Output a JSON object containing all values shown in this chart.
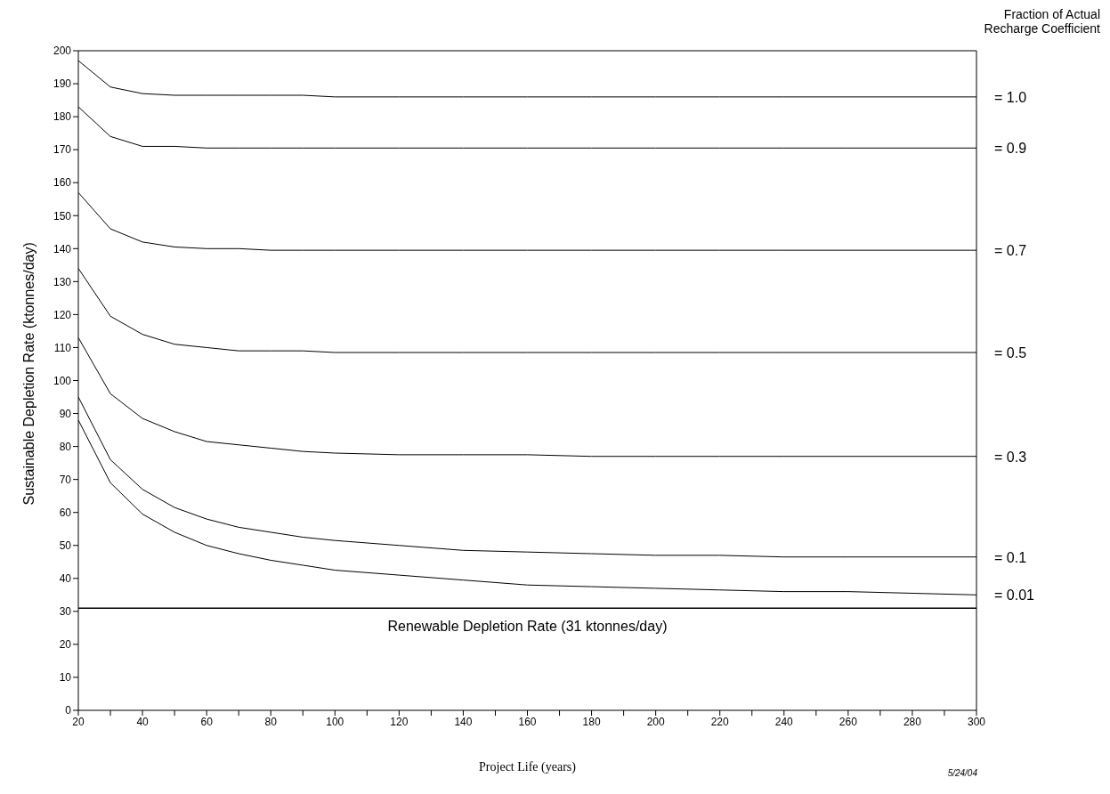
{
  "chart_data": {
    "type": "line",
    "xlabel": "Project Life (years)",
    "ylabel": "Sustainable Depletion Rate (ktonnes/day)",
    "legend_title": "Fraction of Actual Recharge Coefficient",
    "annotations": [
      "5/24/04"
    ],
    "x": [
      20,
      30,
      40,
      50,
      60,
      70,
      80,
      90,
      100,
      120,
      140,
      160,
      180,
      200,
      220,
      240,
      260,
      280,
      300
    ],
    "series": [
      {
        "name": "= 1.0",
        "color": "#000000",
        "values": [
          197,
          189,
          187,
          186.5,
          186.5,
          186.5,
          186.5,
          186.5,
          186,
          186,
          186,
          186,
          186,
          186,
          186,
          186,
          186,
          186,
          186
        ]
      },
      {
        "name": "= 0.9",
        "color": "#000000",
        "values": [
          183,
          174,
          171,
          171,
          170.5,
          170.5,
          170.5,
          170.5,
          170.5,
          170.5,
          170.5,
          170.5,
          170.5,
          170.5,
          170.5,
          170.5,
          170.5,
          170.5,
          170.5
        ]
      },
      {
        "name": "= 0.7",
        "color": "#000000",
        "values": [
          157,
          146,
          142,
          140.5,
          140,
          140,
          139.5,
          139.5,
          139.5,
          139.5,
          139.5,
          139.5,
          139.5,
          139.5,
          139.5,
          139.5,
          139.5,
          139.5,
          139.5
        ]
      },
      {
        "name": "= 0.5",
        "color": "#000000",
        "values": [
          134,
          119.5,
          114,
          111,
          110,
          109,
          109,
          109,
          108.5,
          108.5,
          108.5,
          108.5,
          108.5,
          108.5,
          108.5,
          108.5,
          108.5,
          108.5,
          108.5
        ]
      },
      {
        "name": "= 0.3",
        "color": "#000000",
        "values": [
          113,
          96,
          88.5,
          84.5,
          81.5,
          80.5,
          79.5,
          78.5,
          78,
          77.5,
          77.5,
          77.5,
          77,
          77,
          77,
          77,
          77,
          77,
          77
        ]
      },
      {
        "name": "= 0.1",
        "color": "#000000",
        "values": [
          95,
          76,
          67,
          61.5,
          58,
          55.5,
          54,
          52.5,
          51.5,
          50,
          48.5,
          48,
          47.5,
          47,
          47,
          46.5,
          46.5,
          46.5,
          46.5
        ]
      },
      {
        "name": "= 0.01",
        "color": "#000000",
        "values": [
          88,
          69,
          59.5,
          54,
          50,
          47.5,
          45.5,
          44,
          42.5,
          41,
          39.5,
          38,
          37.5,
          37,
          36.5,
          36,
          36,
          35.5,
          35
        ]
      }
    ],
    "ref_lines": [
      {
        "axis": "y",
        "value": 31,
        "label": "Renewable Depletion Rate (31 ktonnes/day)",
        "color": "#000000"
      }
    ],
    "xlim": [
      20,
      300
    ],
    "xticks": [
      20,
      {
        "value": 30,
        "label": null
      },
      40,
      {
        "value": 50,
        "label": null
      },
      60,
      {
        "value": 70,
        "label": null
      },
      80,
      {
        "value": 90,
        "label": null
      },
      100,
      {
        "value": 110,
        "label": null
      },
      120,
      {
        "value": 130,
        "label": null
      },
      140,
      {
        "value": 150,
        "label": null
      },
      160,
      {
        "value": 170,
        "label": null
      },
      180,
      {
        "value": 190,
        "label": null
      },
      200,
      {
        "value": 210,
        "label": null
      },
      220,
      {
        "value": 230,
        "label": null
      },
      240,
      {
        "value": 250,
        "label": null
      },
      260,
      {
        "value": 270,
        "label": null
      },
      280,
      {
        "value": 290,
        "label": null
      },
      300
    ],
    "ylim": [
      0,
      200
    ],
    "yticks": [
      0,
      10,
      20,
      30,
      40,
      50,
      60,
      70,
      80,
      90,
      100,
      110,
      120,
      130,
      140,
      150,
      160,
      170,
      180,
      190,
      200
    ],
    "marker": "none",
    "line_style": "solid"
  }
}
